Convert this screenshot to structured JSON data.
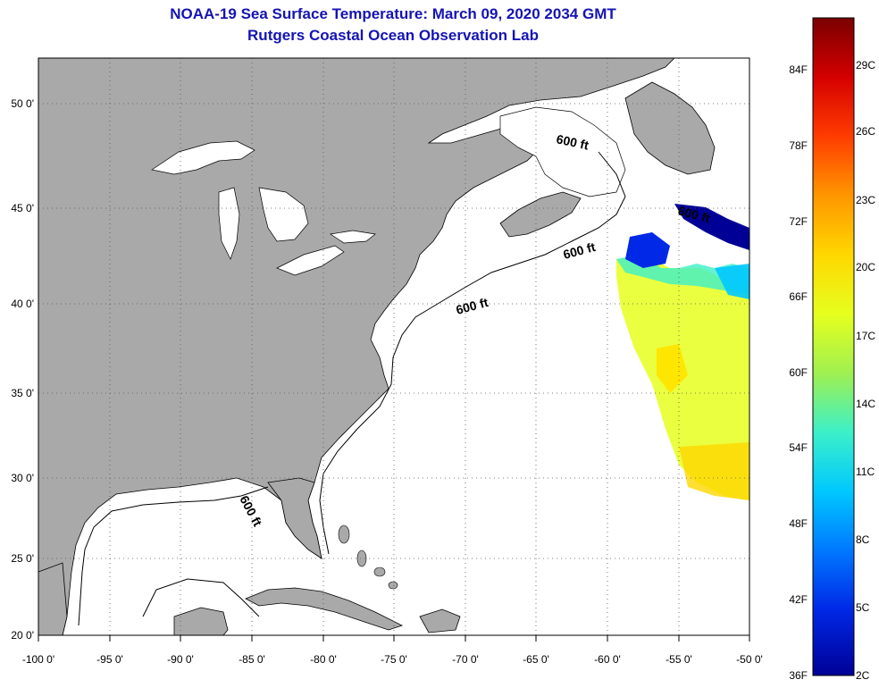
{
  "title": {
    "line1": "NOAA-19 Sea Surface Temperature:  March 09, 2020 2034 GMT",
    "line2": "Rutgers Coastal Ocean Observation Lab"
  },
  "map": {
    "lon_labels": [
      "-100 0'",
      "-95 0'",
      "-90 0'",
      "-85 0'",
      "-80 0'",
      "-75 0'",
      "-70 0'",
      "-65 0'",
      "-60 0'",
      "-55 0'",
      "-50 0'"
    ],
    "lat_labels": [
      "50 0'",
      "45 0'",
      "40 0'",
      "35 0'",
      "30 0'",
      "25 0'",
      "20 0'"
    ],
    "depth_labels": [
      "600 ft",
      "600 ft",
      "600 ft",
      "600 ft",
      "600 ft"
    ],
    "colors": {
      "land": "#a9a9a9",
      "ocean": "#ffffff",
      "grid": "#555555"
    }
  },
  "colorbar": {
    "f_labels": [
      "84F",
      "78F",
      "72F",
      "66F",
      "60F",
      "54F",
      "48F",
      "42F",
      "36F"
    ],
    "c_labels": [
      "29C",
      "26C",
      "23C",
      "20C",
      "17C",
      "14C",
      "11C",
      "8C",
      "5C",
      "2C"
    ],
    "stops": [
      "#7a0000",
      "#d40000",
      "#ff3c00",
      "#ff9600",
      "#ffd700",
      "#e6ff1e",
      "#a0f050",
      "#3cf0c8",
      "#00c8ff",
      "#0078ff",
      "#0028e6",
      "#000096"
    ]
  }
}
